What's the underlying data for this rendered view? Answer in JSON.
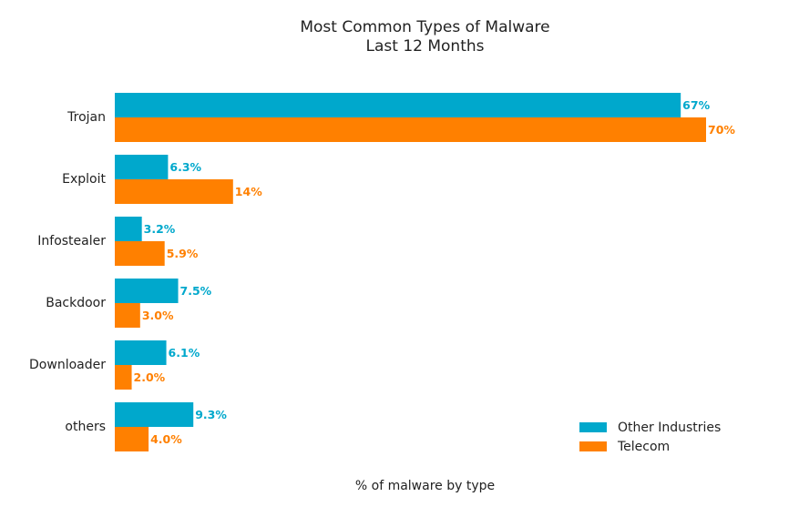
{
  "chart_data": {
    "type": "bar",
    "orientation": "horizontal",
    "title": "Most Common Types of Malware",
    "subtitle": "Last 12 Months",
    "xlabel": "% of malware by type",
    "ylabel": "",
    "categories": [
      "Trojan",
      "Exploit",
      "Infostealer",
      "Backdoor",
      "Downloader",
      "others"
    ],
    "series": [
      {
        "name": "Other Industries",
        "color": "#00a8cc",
        "values": [
          67,
          6.3,
          3.2,
          7.5,
          6.1,
          9.3
        ],
        "labels": [
          "67%",
          "6.3%",
          "3.2%",
          "7.5%",
          "6.1%",
          "9.3%"
        ]
      },
      {
        "name": "Telecom",
        "color": "#ff8000",
        "values": [
          70,
          14,
          5.9,
          3.0,
          2.0,
          4.0
        ],
        "labels": [
          "70%",
          "14%",
          "5.9%",
          "3.0%",
          "2.0%",
          "4.0%"
        ]
      }
    ],
    "xlim": [
      0,
      70
    ],
    "grid": false,
    "legend_position": "bottom-right"
  }
}
